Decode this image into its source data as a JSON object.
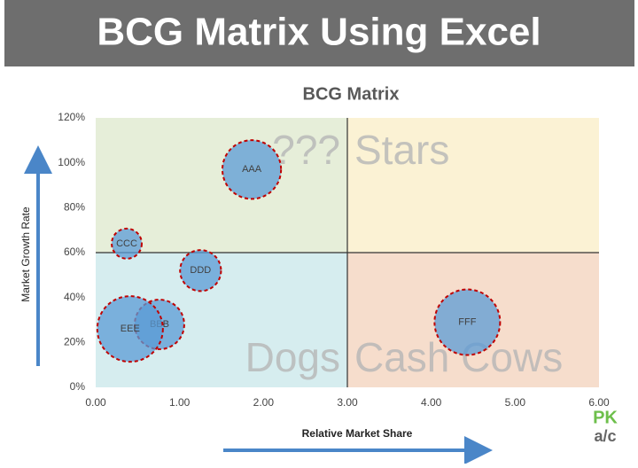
{
  "header": {
    "title": "BCG Matrix Using Excel"
  },
  "logo": {
    "top": "PK",
    "bottom": "a/c"
  },
  "chart_data": {
    "type": "bubble",
    "title": "BCG Matrix",
    "x_label": "Relative Market Share",
    "y_label": "Market Growth Rate",
    "labels": [
      "AAA",
      "CCC",
      "DDD",
      "BBB",
      "EEE",
      "FFF"
    ],
    "x": [
      1.86,
      0.37,
      1.25,
      0.76,
      0.41,
      4.43
    ],
    "y": [
      97,
      64,
      52,
      28,
      26,
      29
    ],
    "sizes": [
      80,
      21,
      39,
      57,
      100,
      100
    ],
    "color": "#5b9bd5",
    "edge_color": "#c00000",
    "xlim": [
      0,
      6
    ],
    "ylim": [
      0,
      120
    ],
    "xticks": [
      {
        "value": 0,
        "label": "0.00"
      },
      {
        "value": 1,
        "label": "1.00"
      },
      {
        "value": 2,
        "label": "2.00"
      },
      {
        "value": 3,
        "label": "3.00"
      },
      {
        "value": 4,
        "label": "4.00"
      },
      {
        "value": 5,
        "label": "5.00"
      },
      {
        "value": 6,
        "label": "6.00"
      }
    ],
    "yticks": [
      {
        "value": 0,
        "label": "0%"
      },
      {
        "value": 20,
        "label": "20%"
      },
      {
        "value": 40,
        "label": "40%"
      },
      {
        "value": 60,
        "label": "60%"
      },
      {
        "value": 80,
        "label": "80%"
      },
      {
        "value": 100,
        "label": "100%"
      },
      {
        "value": 120,
        "label": "120%"
      }
    ],
    "dividers": {
      "x": 3,
      "y": 60
    },
    "quadrant_labels": [
      "???",
      "Stars",
      "Dogs",
      "Cash Cows"
    ],
    "quadrant_colors": [
      "#e6eed9",
      "#fbf2d4",
      "#d6edef",
      "#f6ddcc"
    ]
  }
}
